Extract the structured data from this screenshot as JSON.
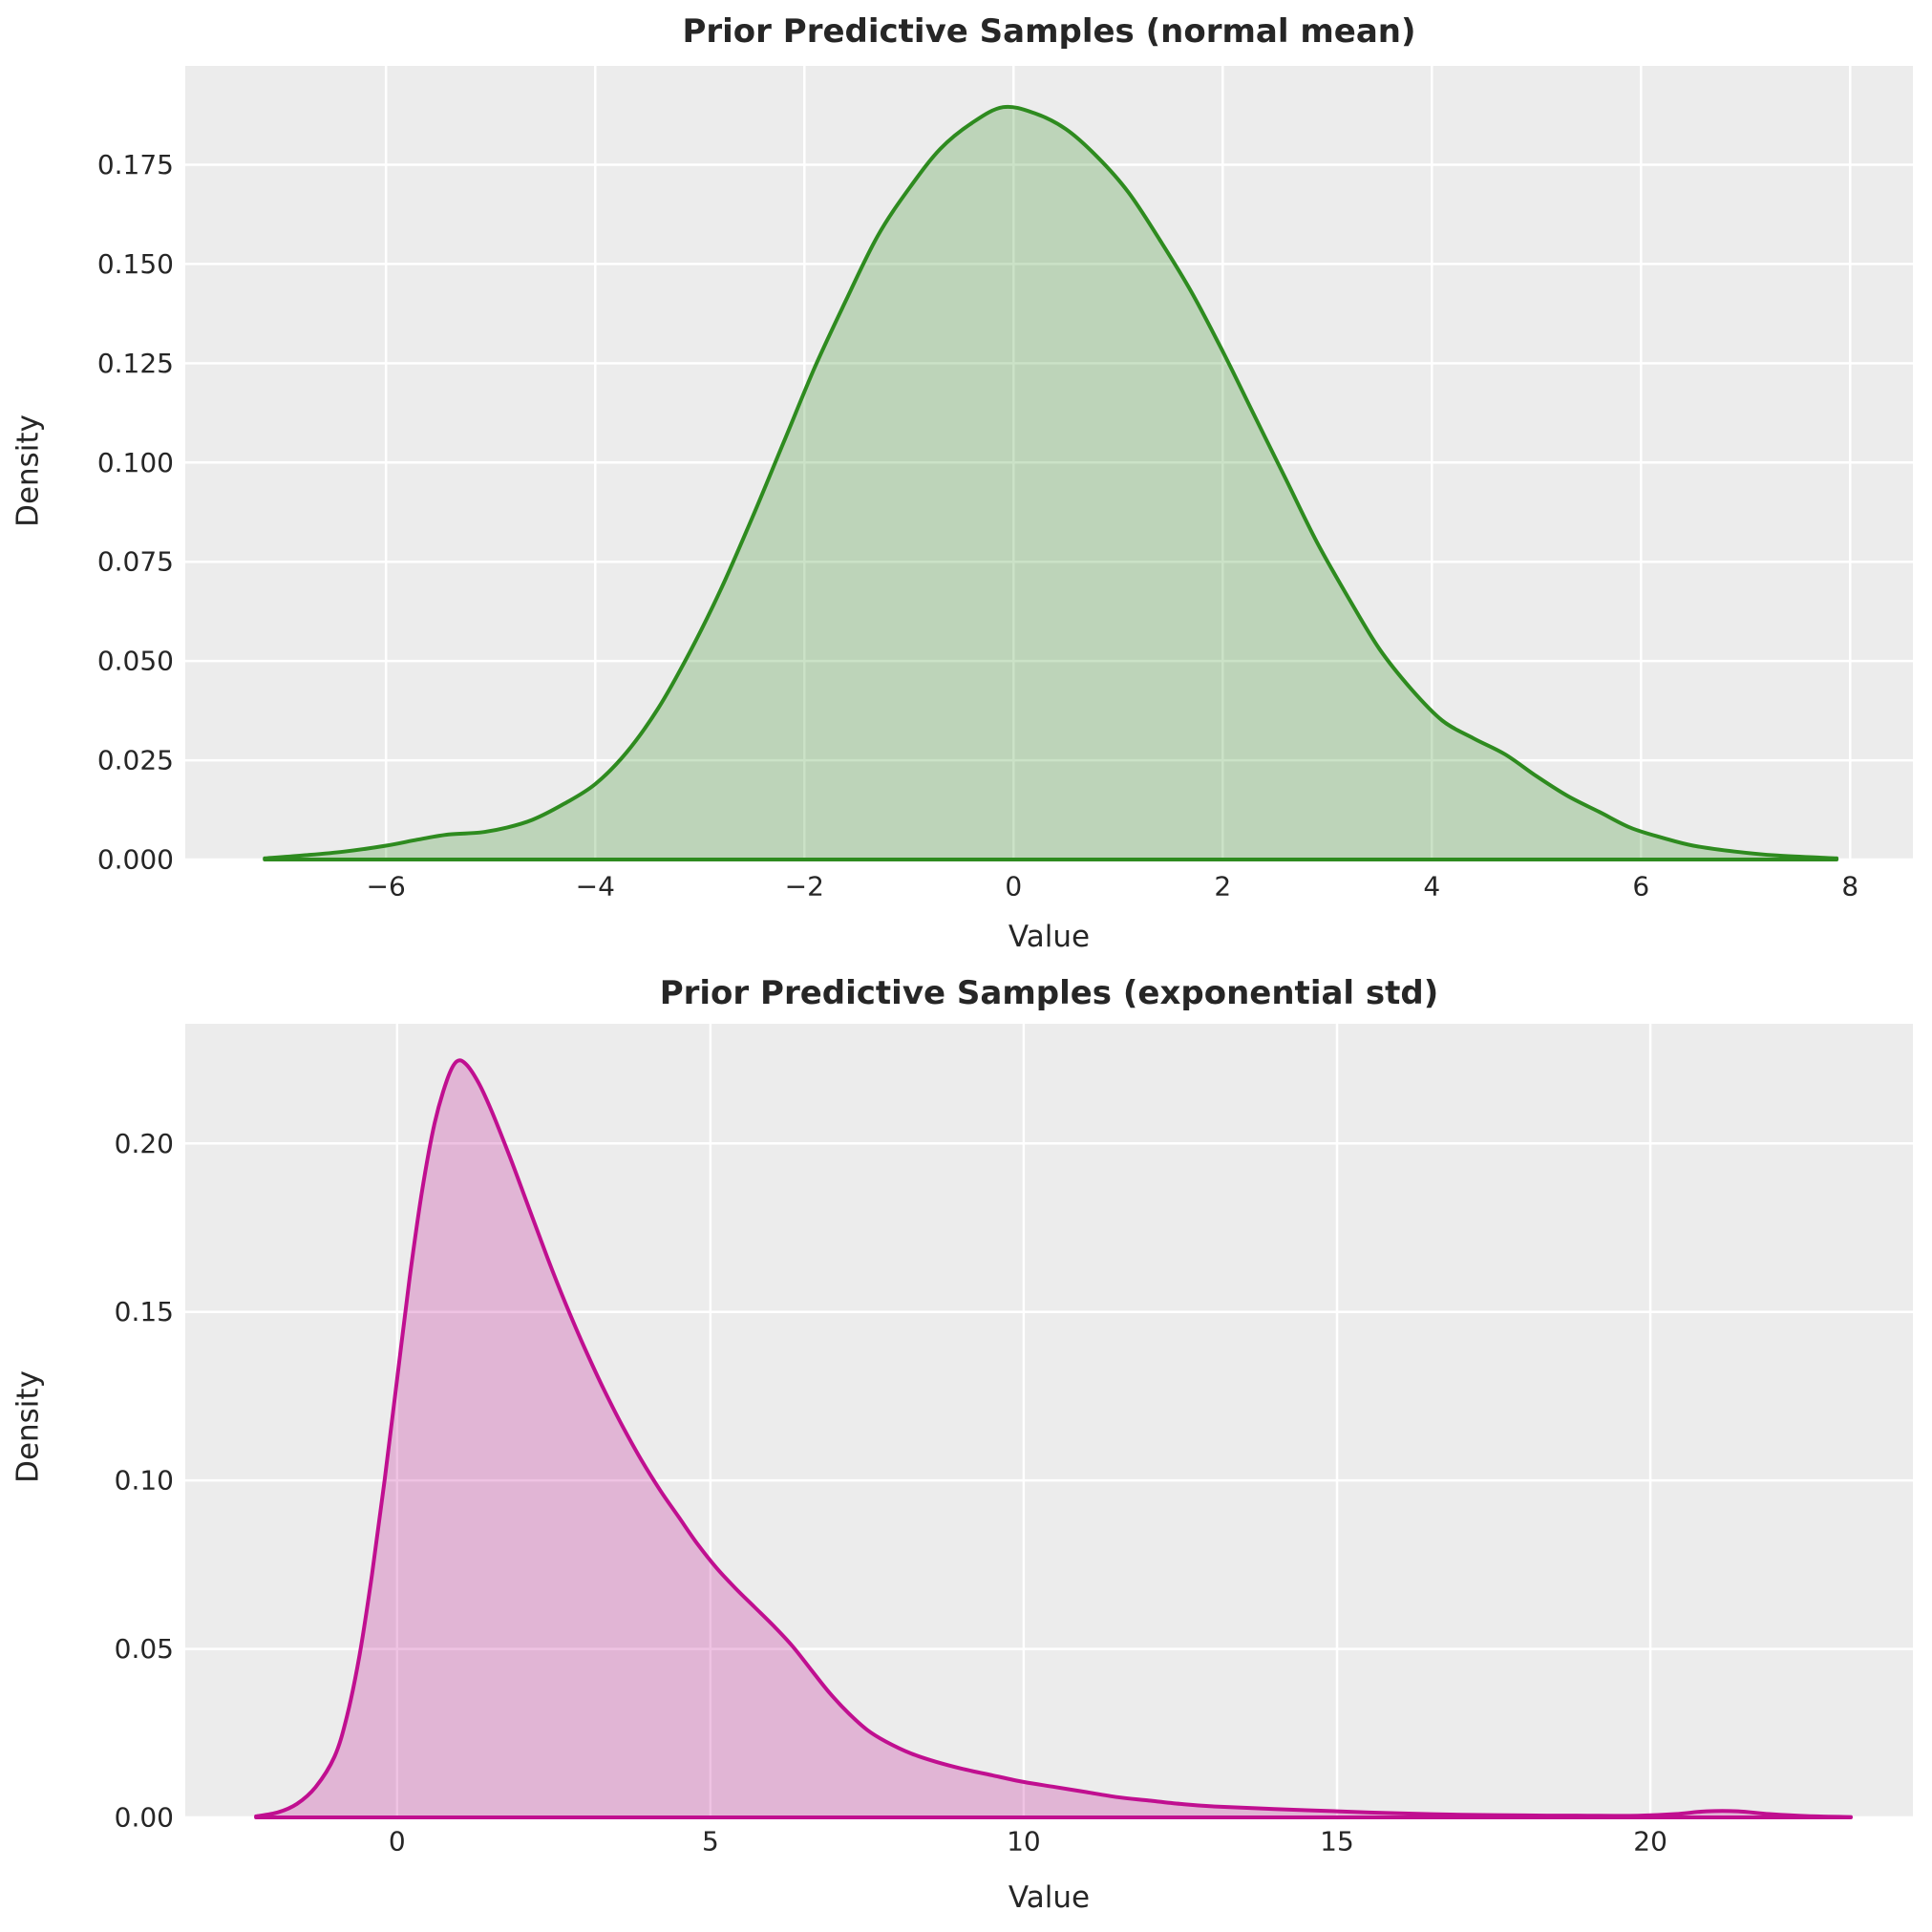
{
  "style": {
    "page_background": "#FFFFFF",
    "plot_background": "#ECECEC",
    "gridline_color": "#FFFFFF",
    "text_color": "#262626"
  },
  "chart_data": [
    {
      "type": "area",
      "subtype": "kde-density",
      "title": "Prior Predictive Samples (normal mean)",
      "xlabel": "Value",
      "ylabel": "Density",
      "line_color": "#2E8B1F",
      "fill_color": "#2E8B1F",
      "fill_opacity": 0.25,
      "grid": true,
      "legend": "none",
      "xlim": [
        -7.92,
        8.6
      ],
      "ylim": [
        0,
        0.1999
      ],
      "xticks": [
        {
          "v": -6,
          "label": "−6"
        },
        {
          "v": -4,
          "label": "−4"
        },
        {
          "v": -2,
          "label": "−2"
        },
        {
          "v": 0,
          "label": "0"
        },
        {
          "v": 2,
          "label": "2"
        },
        {
          "v": 4,
          "label": "4"
        },
        {
          "v": 6,
          "label": "6"
        },
        {
          "v": 8,
          "label": "8"
        }
      ],
      "yticks": [
        {
          "v": 0.0,
          "label": "0.000"
        },
        {
          "v": 0.025,
          "label": "0.025"
        },
        {
          "v": 0.05,
          "label": "0.050"
        },
        {
          "v": 0.075,
          "label": "0.075"
        },
        {
          "v": 0.1,
          "label": "0.100"
        },
        {
          "v": 0.125,
          "label": "0.125"
        },
        {
          "v": 0.15,
          "label": "0.150"
        },
        {
          "v": 0.175,
          "label": "0.175"
        }
      ],
      "points": [
        [
          -7.16,
          0.0003
        ],
        [
          -6.8,
          0.001
        ],
        [
          -6.4,
          0.002
        ],
        [
          -6.0,
          0.0035
        ],
        [
          -5.7,
          0.005
        ],
        [
          -5.4,
          0.0063
        ],
        [
          -5.1,
          0.0068
        ],
        [
          -4.85,
          0.008
        ],
        [
          -4.6,
          0.01
        ],
        [
          -4.3,
          0.014
        ],
        [
          -4.0,
          0.019
        ],
        [
          -3.7,
          0.027
        ],
        [
          -3.4,
          0.038
        ],
        [
          -3.1,
          0.052
        ],
        [
          -2.8,
          0.068
        ],
        [
          -2.5,
          0.086
        ],
        [
          -2.2,
          0.105
        ],
        [
          -1.9,
          0.124
        ],
        [
          -1.6,
          0.141
        ],
        [
          -1.3,
          0.157
        ],
        [
          -1.0,
          0.169
        ],
        [
          -0.7,
          0.179
        ],
        [
          -0.4,
          0.1855
        ],
        [
          -0.1,
          0.1895
        ],
        [
          0.2,
          0.188
        ],
        [
          0.5,
          0.184
        ],
        [
          0.8,
          0.177
        ],
        [
          1.1,
          0.168
        ],
        [
          1.4,
          0.156
        ],
        [
          1.7,
          0.143
        ],
        [
          2.0,
          0.128
        ],
        [
          2.3,
          0.112
        ],
        [
          2.6,
          0.096
        ],
        [
          2.9,
          0.08
        ],
        [
          3.2,
          0.066
        ],
        [
          3.5,
          0.053
        ],
        [
          3.8,
          0.043
        ],
        [
          4.1,
          0.035
        ],
        [
          4.4,
          0.0305
        ],
        [
          4.7,
          0.0265
        ],
        [
          5.0,
          0.021
        ],
        [
          5.3,
          0.016
        ],
        [
          5.6,
          0.012
        ],
        [
          5.9,
          0.008
        ],
        [
          6.2,
          0.0055
        ],
        [
          6.5,
          0.0035
        ],
        [
          6.9,
          0.002
        ],
        [
          7.3,
          0.001
        ],
        [
          7.87,
          0.0003
        ]
      ]
    },
    {
      "type": "area",
      "subtype": "kde-density",
      "title": "Prior Predictive Samples (exponential std)",
      "xlabel": "Value",
      "ylabel": "Density",
      "line_color": "#C00F90",
      "fill_color": "#C00F90",
      "fill_opacity": 0.25,
      "grid": true,
      "legend": "none",
      "xlim": [
        -3.38,
        24.19
      ],
      "ylim": [
        0,
        0.2355
      ],
      "xticks": [
        {
          "v": 0,
          "label": "0"
        },
        {
          "v": 5,
          "label": "5"
        },
        {
          "v": 10,
          "label": "10"
        },
        {
          "v": 15,
          "label": "15"
        },
        {
          "v": 20,
          "label": "20"
        }
      ],
      "yticks": [
        {
          "v": 0.0,
          "label": "0.00"
        },
        {
          "v": 0.05,
          "label": "0.05"
        },
        {
          "v": 0.1,
          "label": "0.10"
        },
        {
          "v": 0.15,
          "label": "0.15"
        },
        {
          "v": 0.2,
          "label": "0.20"
        }
      ],
      "points": [
        [
          -2.25,
          0.0003
        ],
        [
          -1.9,
          0.0015
        ],
        [
          -1.6,
          0.004
        ],
        [
          -1.3,
          0.009
        ],
        [
          -1.0,
          0.018
        ],
        [
          -0.8,
          0.03
        ],
        [
          -0.6,
          0.048
        ],
        [
          -0.4,
          0.072
        ],
        [
          -0.2,
          0.1
        ],
        [
          0.0,
          0.13
        ],
        [
          0.2,
          0.16
        ],
        [
          0.4,
          0.186
        ],
        [
          0.6,
          0.206
        ],
        [
          0.8,
          0.219
        ],
        [
          0.95,
          0.2243
        ],
        [
          1.1,
          0.2235
        ],
        [
          1.3,
          0.218
        ],
        [
          1.5,
          0.21
        ],
        [
          1.8,
          0.196
        ],
        [
          2.1,
          0.181
        ],
        [
          2.4,
          0.166
        ],
        [
          2.7,
          0.152
        ],
        [
          3.0,
          0.139
        ],
        [
          3.3,
          0.127
        ],
        [
          3.6,
          0.116
        ],
        [
          3.9,
          0.106
        ],
        [
          4.2,
          0.097
        ],
        [
          4.5,
          0.089
        ],
        [
          4.8,
          0.081
        ],
        [
          5.1,
          0.074
        ],
        [
          5.4,
          0.068
        ],
        [
          5.7,
          0.0625
        ],
        [
          6.0,
          0.057
        ],
        [
          6.3,
          0.051
        ],
        [
          6.6,
          0.044
        ],
        [
          6.9,
          0.037
        ],
        [
          7.2,
          0.031
        ],
        [
          7.5,
          0.026
        ],
        [
          7.8,
          0.0225
        ],
        [
          8.2,
          0.019
        ],
        [
          8.6,
          0.0165
        ],
        [
          9.0,
          0.0145
        ],
        [
          9.5,
          0.0125
        ],
        [
          10.0,
          0.0105
        ],
        [
          10.5,
          0.009
        ],
        [
          11.0,
          0.0075
        ],
        [
          11.5,
          0.006
        ],
        [
          12.0,
          0.005
        ],
        [
          12.5,
          0.004
        ],
        [
          13.0,
          0.0033
        ],
        [
          14.0,
          0.0025
        ],
        [
          15.0,
          0.0018
        ],
        [
          16.0,
          0.0012
        ],
        [
          17.0,
          0.0008
        ],
        [
          18.0,
          0.0006
        ],
        [
          19.0,
          0.0005
        ],
        [
          19.8,
          0.0005
        ],
        [
          20.4,
          0.001
        ],
        [
          20.9,
          0.0018
        ],
        [
          21.4,
          0.0018
        ],
        [
          21.9,
          0.001
        ],
        [
          22.5,
          0.0004
        ],
        [
          23.2,
          0.0001
        ]
      ]
    }
  ]
}
